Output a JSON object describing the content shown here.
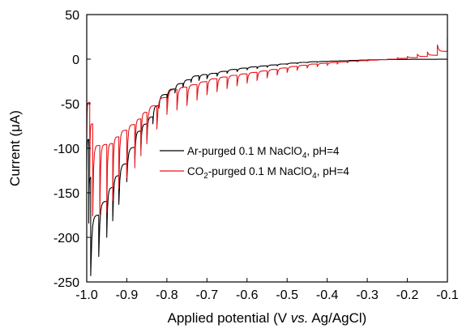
{
  "chart_data": {
    "type": "line",
    "title": "",
    "xlabel": "Applied potential (V vs. Ag/AgCl)",
    "xlabel_parts": {
      "pre": "Applied potential (V ",
      "italic": "vs.",
      "post": " Ag/AgCl)"
    },
    "ylabel": "Current (μA)",
    "xlim": [
      -1.0,
      -0.1
    ],
    "ylim": [
      -250,
      50
    ],
    "x_ticks": [
      -1.0,
      -0.9,
      -0.8,
      -0.7,
      -0.6,
      -0.5,
      -0.4,
      -0.3,
      -0.2,
      -0.1
    ],
    "x_tick_labels": [
      "-1.0",
      "-0.9",
      "-0.8",
      "-0.7",
      "-0.6",
      "-0.5",
      "-0.4",
      "-0.3",
      "-0.2",
      "-0.1"
    ],
    "y_ticks": [
      -250,
      -200,
      -150,
      -100,
      -50,
      0,
      50
    ],
    "y_tick_labels": [
      "-250",
      "-200",
      "-150",
      "-100",
      "-50",
      "0",
      "50"
    ],
    "grid": false,
    "legend_position": "center-right",
    "series": [
      {
        "name": "Ar-purged 0.1 M NaClO4, pH=4",
        "legend_parts": {
          "pre": "Ar-purged 0.1 M NaClO",
          "sub": "4",
          "post": ", pH=4"
        },
        "color": "#000000",
        "x": [
          -1.0,
          -0.99,
          -0.95,
          -0.92,
          -0.88,
          -0.85,
          -0.82,
          -0.78,
          -0.74,
          -0.7,
          -0.65,
          -0.6,
          -0.55,
          -0.5,
          -0.45,
          -0.4,
          -0.35,
          -0.3,
          -0.25,
          -0.2,
          -0.15,
          -0.1
        ],
        "y": [
          -125,
          -243,
          -200,
          -163,
          -112,
          -90,
          -55,
          -38,
          -26,
          -22,
          -16,
          -12,
          -9,
          -6,
          -4,
          -3,
          -2,
          -1,
          -0.5,
          -0.3,
          -0.2,
          0
        ]
      },
      {
        "name": "CO2-purged 0.1 M NaClO4, pH=4",
        "legend_parts": {
          "pre": "CO",
          "sub": "2",
          "mid": "-purged 0.1 M NaClO",
          "sub2": "4",
          "post": ", pH=4"
        },
        "color": "#e8141a",
        "x": [
          -1.0,
          -0.985,
          -0.95,
          -0.92,
          -0.88,
          -0.85,
          -0.8,
          -0.75,
          -0.7,
          -0.65,
          -0.6,
          -0.55,
          -0.5,
          -0.45,
          -0.4,
          -0.35,
          -0.3,
          -0.25,
          -0.2,
          -0.15,
          -0.1
        ],
        "y": [
          -88,
          -176,
          -172,
          -145,
          -122,
          -95,
          -62,
          -52,
          -40,
          -33,
          -27,
          -21,
          -15,
          -10,
          -7,
          -4,
          -2,
          0,
          3,
          8,
          24
        ]
      }
    ]
  }
}
